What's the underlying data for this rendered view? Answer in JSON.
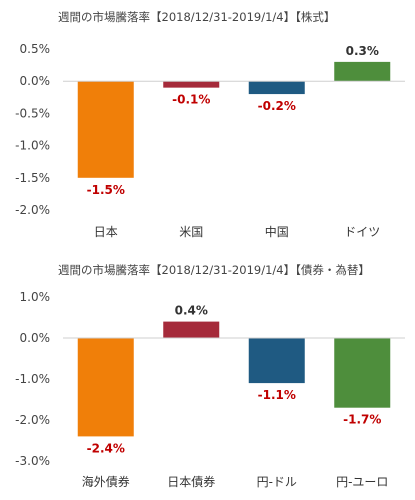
{
  "chart_data": [
    {
      "type": "bar",
      "title": "週間の市場騰落率【2018/12/31-2019/1/4】【株式】",
      "categories": [
        "日本",
        "米国",
        "中国",
        "ドイツ"
      ],
      "values": [
        -1.5,
        -0.1,
        -0.2,
        0.3
      ],
      "value_labels": [
        "-1.5%",
        "-0.1%",
        "-0.2%",
        "0.3%"
      ],
      "colors": [
        "#F07F09",
        "#A52A3A",
        "#1F5A82",
        "#4E8E3C"
      ],
      "ylim": [
        -2.0,
        0.5
      ],
      "yticks": [
        0.5,
        0.0,
        -0.5,
        -1.0,
        -1.5,
        -2.0
      ],
      "ytick_labels": [
        "0.5%",
        "0.0%",
        "-0.5%",
        "-1.0%",
        "-1.5%",
        "-2.0%"
      ],
      "grid": false,
      "label_colors": {
        "positive": "#333333",
        "negative": "#C00000"
      }
    },
    {
      "type": "bar",
      "title": "週間の市場騰落率【2018/12/31-2019/1/4】【債券・為替】",
      "categories": [
        "海外債券",
        "日本債券",
        "円-ドル",
        "円-ユーロ"
      ],
      "values": [
        -2.4,
        0.4,
        -1.1,
        -1.7
      ],
      "value_labels": [
        "-2.4%",
        "0.4%",
        "-1.1%",
        "-1.7%"
      ],
      "colors": [
        "#F07F09",
        "#A52A3A",
        "#1F5A82",
        "#4E8E3C"
      ],
      "ylim": [
        -3.0,
        1.0
      ],
      "yticks": [
        1.0,
        0.0,
        -1.0,
        -2.0,
        -3.0
      ],
      "ytick_labels": [
        "1.0%",
        "0.0%",
        "-1.0%",
        "-2.0%",
        "-3.0%"
      ],
      "grid": false,
      "label_colors": {
        "positive": "#333333",
        "negative": "#C00000"
      }
    }
  ]
}
